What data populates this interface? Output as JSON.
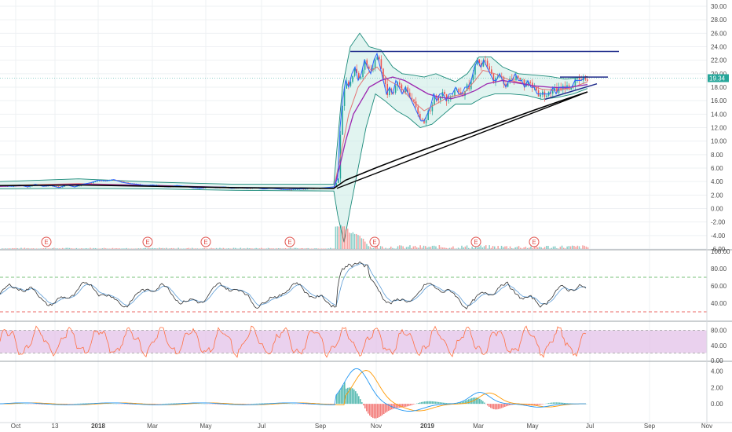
{
  "colors": {
    "up": "#26a69a",
    "down": "#ef5350",
    "grid": "#eef0f3",
    "axis": "#d6d9de",
    "blue_line": "#2962ff",
    "black_line": "#000000",
    "purple_line": "#9c27b0",
    "red_ma": "#e57373",
    "bb": "#1b8a7a",
    "bb_fill": "#c8ebe4",
    "rsi_main": "#333333",
    "rsi_signal": "#5b9bd5",
    "rsi_ob": "#4caf50",
    "rsi_os": "#e53935",
    "stoch_band": "#e1bee7",
    "stoch_line": "#ff7043",
    "macd_line": "#2196f3",
    "signal_line": "#ff9800"
  },
  "price_badge": "19.34",
  "earnings_marker": "E",
  "chart_data": [
    {
      "type": "candlestick",
      "pane": "price",
      "ylim": [
        -6,
        30
      ],
      "yticks": [
        "30.00",
        "28.00",
        "26.00",
        "24.00",
        "22.00",
        "20.00",
        "18.00",
        "16.00",
        "14.00",
        "12.00",
        "10.00",
        "8.00",
        "6.00",
        "4.00",
        "2.00",
        "0.00",
        "-2.00",
        "-4.00",
        "-6.00"
      ],
      "last_price": 19.34,
      "x_labels": [
        "Oct",
        "13",
        "2018",
        "Mar",
        "May",
        "Jul",
        "Sep",
        "Nov",
        "2019",
        "Mar",
        "May",
        "Jul",
        "Sep",
        "Nov"
      ],
      "price_path": [
        [
          0,
          3.4
        ],
        [
          15,
          3.3
        ],
        [
          25,
          3.5
        ],
        [
          35,
          3.2
        ],
        [
          45,
          3.6
        ],
        [
          55,
          3.3
        ],
        [
          65,
          3.4
        ],
        [
          75,
          3.1
        ],
        [
          85,
          3.5
        ],
        [
          95,
          3.2
        ],
        [
          105,
          3.6
        ],
        [
          115,
          3.8
        ],
        [
          125,
          4.2
        ],
        [
          135,
          4.1
        ],
        [
          145,
          4.3
        ],
        [
          155,
          3.9
        ],
        [
          165,
          3.7
        ],
        [
          175,
          3.6
        ],
        [
          185,
          3.4
        ],
        [
          195,
          3.5
        ],
        [
          205,
          3.3
        ],
        [
          215,
          3.2
        ],
        [
          225,
          3.4
        ],
        [
          235,
          3.3
        ],
        [
          245,
          3.1
        ],
        [
          255,
          3.0
        ],
        [
          265,
          3.2
        ],
        [
          275,
          3.1
        ],
        [
          285,
          3.2
        ],
        [
          295,
          3.0
        ],
        [
          305,
          3.1
        ],
        [
          315,
          3.0
        ],
        [
          325,
          3.1
        ],
        [
          335,
          2.9
        ],
        [
          345,
          3.0
        ],
        [
          355,
          2.9
        ],
        [
          365,
          2.8
        ],
        [
          375,
          2.9
        ],
        [
          385,
          2.9
        ],
        [
          395,
          3.0
        ],
        [
          405,
          3.0
        ],
        [
          415,
          3.1
        ],
        [
          425,
          3.2
        ],
        [
          430,
          4.5
        ],
        [
          433,
          12
        ],
        [
          436,
          16
        ],
        [
          440,
          19
        ],
        [
          444,
          18
        ],
        [
          448,
          20
        ],
        [
          452,
          21
        ],
        [
          456,
          19
        ],
        [
          460,
          20
        ],
        [
          464,
          22
        ],
        [
          468,
          21
        ],
        [
          472,
          20
        ],
        [
          476,
          22
        ],
        [
          480,
          23
        ],
        [
          484,
          21
        ],
        [
          488,
          19
        ],
        [
          492,
          17
        ],
        [
          496,
          18
        ],
        [
          500,
          17
        ],
        [
          504,
          19
        ],
        [
          508,
          18
        ],
        [
          512,
          17
        ],
        [
          516,
          18
        ],
        [
          520,
          17
        ],
        [
          524,
          16
        ],
        [
          528,
          15
        ],
        [
          532,
          14
        ],
        [
          536,
          13
        ],
        [
          540,
          13
        ],
        [
          544,
          14
        ],
        [
          548,
          15
        ],
        [
          552,
          17
        ],
        [
          556,
          16
        ],
        [
          560,
          17
        ],
        [
          564,
          17
        ],
        [
          568,
          16
        ],
        [
          572,
          17
        ],
        [
          576,
          17
        ],
        [
          580,
          18
        ],
        [
          584,
          17
        ],
        [
          588,
          17
        ],
        [
          592,
          18
        ],
        [
          596,
          18
        ],
        [
          600,
          19
        ],
        [
          604,
          21
        ],
        [
          608,
          22
        ],
        [
          612,
          21
        ],
        [
          616,
          22
        ],
        [
          620,
          21
        ],
        [
          624,
          20
        ],
        [
          628,
          19
        ],
        [
          632,
          19
        ],
        [
          636,
          20
        ],
        [
          640,
          19
        ],
        [
          644,
          18
        ],
        [
          648,
          19
        ],
        [
          652,
          19
        ],
        [
          656,
          20
        ],
        [
          660,
          19
        ],
        [
          664,
          19
        ],
        [
          668,
          18
        ],
        [
          672,
          19
        ],
        [
          676,
          18
        ],
        [
          680,
          18
        ],
        [
          684,
          17
        ],
        [
          688,
          17
        ],
        [
          692,
          17
        ],
        [
          696,
          17
        ],
        [
          700,
          17
        ],
        [
          704,
          18
        ],
        [
          708,
          17
        ],
        [
          712,
          18
        ],
        [
          716,
          18
        ],
        [
          720,
          18
        ],
        [
          724,
          18
        ],
        [
          728,
          18
        ],
        [
          732,
          19
        ],
        [
          736,
          19
        ],
        [
          740,
          19
        ],
        [
          744,
          19.34
        ]
      ],
      "sma200": [
        [
          0,
          3.4
        ],
        [
          100,
          3.5
        ],
        [
          200,
          3.3
        ],
        [
          300,
          3.1
        ],
        [
          425,
          3.0
        ],
        [
          440,
          4.2
        ],
        [
          480,
          6.1
        ],
        [
          520,
          7.9
        ],
        [
          560,
          9.6
        ],
        [
          600,
          11.2
        ],
        [
          640,
          12.9
        ],
        [
          680,
          14.6
        ],
        [
          720,
          16.2
        ],
        [
          748,
          17.3
        ]
      ],
      "ma_purple": [
        [
          0,
          3.3
        ],
        [
          100,
          3.6
        ],
        [
          200,
          3.4
        ],
        [
          300,
          3.1
        ],
        [
          425,
          3.0
        ],
        [
          432,
          6
        ],
        [
          440,
          10
        ],
        [
          450,
          14
        ],
        [
          460,
          16
        ],
        [
          470,
          18
        ],
        [
          485,
          19
        ],
        [
          500,
          19.5
        ],
        [
          515,
          19.0
        ],
        [
          530,
          18
        ],
        [
          545,
          17
        ],
        [
          560,
          16.5
        ],
        [
          575,
          16.3
        ],
        [
          590,
          16.8
        ],
        [
          605,
          17.5
        ],
        [
          620,
          18.5
        ],
        [
          640,
          19.0
        ],
        [
          660,
          18.6
        ],
        [
          680,
          18.2
        ],
        [
          700,
          18.0
        ],
        [
          720,
          17.9
        ],
        [
          748,
          18.4
        ]
      ],
      "ma_red": [
        [
          0,
          3.4
        ],
        [
          100,
          3.7
        ],
        [
          200,
          3.4
        ],
        [
          300,
          3.1
        ],
        [
          425,
          3.0
        ],
        [
          434,
          8
        ],
        [
          444,
          14
        ],
        [
          456,
          18
        ],
        [
          468,
          20
        ],
        [
          480,
          21
        ],
        [
          495,
          19
        ],
        [
          510,
          18
        ],
        [
          525,
          16
        ],
        [
          540,
          14.5
        ],
        [
          555,
          15.5
        ],
        [
          570,
          16.5
        ],
        [
          590,
          17
        ],
        [
          605,
          19
        ],
        [
          615,
          20.5
        ],
        [
          630,
          20
        ],
        [
          650,
          19
        ],
        [
          670,
          18.5
        ],
        [
          690,
          17.7
        ],
        [
          710,
          17.5
        ],
        [
          730,
          18
        ],
        [
          748,
          18.8
        ]
      ],
      "bb_upper": [
        [
          0,
          4.0
        ],
        [
          100,
          4.4
        ],
        [
          200,
          3.9
        ],
        [
          300,
          3.6
        ],
        [
          425,
          3.6
        ],
        [
          436,
          18
        ],
        [
          446,
          24
        ],
        [
          458,
          26
        ],
        [
          470,
          24
        ],
        [
          485,
          23.5
        ],
        [
          500,
          21
        ],
        [
          512,
          20
        ],
        [
          525,
          19.8
        ],
        [
          540,
          19.5
        ],
        [
          555,
          20
        ],
        [
          565,
          19.5
        ],
        [
          580,
          18.8
        ],
        [
          595,
          20
        ],
        [
          610,
          22.5
        ],
        [
          625,
          22.5
        ],
        [
          640,
          21
        ],
        [
          660,
          20
        ],
        [
          680,
          19.8
        ],
        [
          700,
          19.6
        ],
        [
          720,
          19.2
        ],
        [
          748,
          19.6
        ]
      ],
      "bb_lower": [
        [
          0,
          2.9
        ],
        [
          100,
          3.0
        ],
        [
          200,
          2.9
        ],
        [
          300,
          2.7
        ],
        [
          425,
          2.6
        ],
        [
          430,
          -1
        ],
        [
          438,
          -5
        ],
        [
          446,
          0
        ],
        [
          456,
          6
        ],
        [
          466,
          12
        ],
        [
          478,
          17
        ],
        [
          490,
          16
        ],
        [
          505,
          14.5
        ],
        [
          520,
          13.5
        ],
        [
          535,
          12
        ],
        [
          550,
          12.5
        ],
        [
          565,
          14
        ],
        [
          580,
          15.5
        ],
        [
          600,
          15.5
        ],
        [
          615,
          16.5
        ],
        [
          630,
          17
        ],
        [
          650,
          17
        ],
        [
          670,
          16.8
        ],
        [
          690,
          16.2
        ],
        [
          710,
          16.5
        ],
        [
          730,
          17
        ],
        [
          748,
          17.8
        ]
      ],
      "hlines": [
        {
          "y": 23.3,
          "x_from": 446,
          "x_to": 788
        },
        {
          "y": 19.5,
          "x_from": 713,
          "x_to": 774
        }
      ],
      "trend_lines": [
        {
          "from": [
            429,
            3.0
          ],
          "to": [
            748,
            17.3
          ],
          "color": "black"
        },
        {
          "from": [
            694,
            16.2
          ],
          "to": [
            760,
            18.5
          ],
          "color": "blue"
        }
      ],
      "earnings_x": [
        59,
        188,
        262,
        369,
        477,
        606,
        680
      ]
    },
    {
      "type": "line",
      "pane": "rsi",
      "ylim": [
        20,
        100
      ],
      "yticks": [
        "100.00",
        "80.00",
        "60.00",
        "40.00"
      ],
      "overbought": 70,
      "oversold": 30
    },
    {
      "type": "line",
      "pane": "stoch",
      "ylim": [
        0,
        100
      ],
      "yticks": [
        "80.00",
        "40.00",
        "0.00"
      ],
      "band": [
        20,
        80
      ]
    },
    {
      "type": "bar",
      "pane": "macd",
      "ylim": [
        -2,
        5
      ],
      "yticks": [
        "4.00",
        "2.00",
        "0.00"
      ]
    }
  ]
}
